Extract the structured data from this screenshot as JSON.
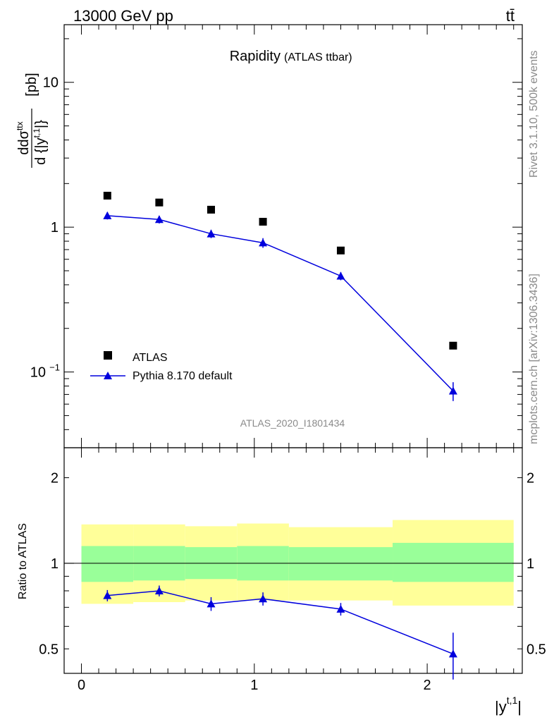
{
  "header": {
    "left": "13000 GeV pp",
    "right": "tt̄"
  },
  "title": {
    "main": "Rapidity",
    "sub": "(ATLAS ttbar)"
  },
  "watermark": "ATLAS_2020_I1801434",
  "side_labels": {
    "rivet": "Rivet 3.1.10,  500k events",
    "source": "mcplots.cern.ch [arXiv:1306.3436]"
  },
  "axes": {
    "top_ylabel_num": "dσ",
    "top_ylabel_num_sup": "ttx",
    "top_ylabel_den": "d {|y",
    "top_ylabel_den_sup": "t,1",
    "top_ylabel_den_tail": "|}",
    "top_ylabel_unit": "[pb]",
    "bottom_ylabel": "Ratio to ATLAS",
    "xlabel": "|y",
    "xlabel_sup": "t,1",
    "xlabel_tail": "|"
  },
  "ticks": {
    "top_y": [
      {
        "v": 10,
        "label": "10"
      },
      {
        "v": 1,
        "label": "1"
      },
      {
        "v": 0.1,
        "label": "10",
        "sup": "−1"
      }
    ],
    "bottom_y": [
      {
        "v": 2,
        "label": "2"
      },
      {
        "v": 1,
        "label": "1"
      },
      {
        "v": 0.5,
        "label": "0.5"
      }
    ],
    "x": [
      {
        "v": 0,
        "label": "0"
      },
      {
        "v": 1,
        "label": "1"
      },
      {
        "v": 2,
        "label": "2"
      }
    ]
  },
  "chart_data": [
    {
      "type": "scatter",
      "panel": "main",
      "yscale": "log",
      "xlim": [
        -0.1,
        2.55
      ],
      "ylim": [
        0.03,
        25
      ],
      "legend": "lower-left",
      "series": [
        {
          "name": "ATLAS",
          "marker": "square",
          "color": "#000000",
          "x": [
            0.15,
            0.45,
            0.75,
            1.05,
            1.5,
            2.15
          ],
          "y": [
            1.65,
            1.48,
            1.32,
            1.09,
            0.69,
            0.152
          ]
        },
        {
          "name": "Pythia 8.170 default",
          "marker": "triangle",
          "color": "#0000dd",
          "line": true,
          "x": [
            0.15,
            0.45,
            0.75,
            1.05,
            1.5,
            2.15
          ],
          "y": [
            1.2,
            1.13,
            0.9,
            0.78,
            0.46,
            0.074
          ],
          "err": [
            0.07,
            0.07,
            0.06,
            0.06,
            0.03,
            0.011
          ]
        }
      ]
    },
    {
      "type": "line",
      "panel": "ratio",
      "yscale": "log",
      "xlim": [
        -0.1,
        2.55
      ],
      "ylim": [
        0.41,
        2.55
      ],
      "bands": [
        {
          "x0": 0.0,
          "x1": 0.3,
          "yellow": [
            0.72,
            1.37
          ],
          "green": [
            0.86,
            1.15
          ]
        },
        {
          "x0": 0.3,
          "x1": 0.6,
          "yellow": [
            0.73,
            1.37
          ],
          "green": [
            0.87,
            1.15
          ]
        },
        {
          "x0": 0.6,
          "x1": 0.9,
          "yellow": [
            0.74,
            1.35
          ],
          "green": [
            0.88,
            1.14
          ]
        },
        {
          "x0": 0.9,
          "x1": 1.2,
          "yellow": [
            0.74,
            1.38
          ],
          "green": [
            0.87,
            1.15
          ]
        },
        {
          "x0": 1.2,
          "x1": 1.8,
          "yellow": [
            0.74,
            1.34
          ],
          "green": [
            0.87,
            1.14
          ]
        },
        {
          "x0": 1.8,
          "x1": 2.5,
          "yellow": [
            0.71,
            1.42
          ],
          "green": [
            0.86,
            1.18
          ]
        }
      ],
      "reference": 1,
      "series": [
        {
          "name": "Pythia 8.170 default",
          "color": "#0000dd",
          "x": [
            0.15,
            0.45,
            0.75,
            1.05,
            1.5,
            2.15
          ],
          "y": [
            0.77,
            0.8,
            0.72,
            0.75,
            0.69,
            0.48
          ],
          "err": [
            0.035,
            0.035,
            0.04,
            0.04,
            0.035,
            0.09
          ]
        }
      ]
    }
  ],
  "legend": {
    "atlas": "ATLAS",
    "pythia": "Pythia 8.170 default"
  }
}
